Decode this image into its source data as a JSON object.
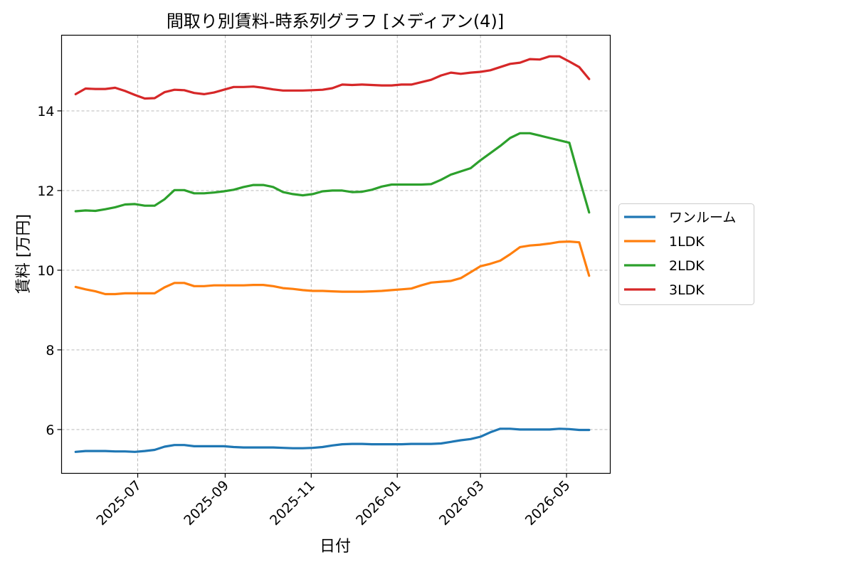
{
  "chart_data": {
    "type": "line",
    "title": "間取り別賃料-時系列グラフ [メディアン(4)]",
    "xlabel": "日付",
    "ylabel": "賃料 [万円]",
    "ylim": [
      4.9,
      15.9
    ],
    "yticks": [
      6,
      8,
      10,
      12,
      14
    ],
    "xlim": [
      "2025-05-08",
      "2026-06-01"
    ],
    "xticks": [
      "2025-07-01",
      "2025-09-01",
      "2025-11-01",
      "2026-01-01",
      "2026-03-01",
      "2026-05-01"
    ],
    "xtick_labels": [
      "2025-07",
      "2025-09",
      "2025-11",
      "2026-01",
      "2026-03",
      "2026-05"
    ],
    "grid": true,
    "legend_position": "center-right-outside",
    "x": [
      "2025-05-18",
      "2025-05-25",
      "2025-06-01",
      "2025-06-08",
      "2025-06-15",
      "2025-06-22",
      "2025-06-29",
      "2025-07-06",
      "2025-07-13",
      "2025-07-20",
      "2025-07-27",
      "2025-08-03",
      "2025-08-10",
      "2025-08-17",
      "2025-08-24",
      "2025-08-31",
      "2025-09-07",
      "2025-09-14",
      "2025-09-21",
      "2025-09-28",
      "2025-10-05",
      "2025-10-12",
      "2025-10-19",
      "2025-10-26",
      "2025-11-02",
      "2025-11-09",
      "2025-11-16",
      "2025-11-23",
      "2025-11-30",
      "2025-12-07",
      "2025-12-14",
      "2025-12-21",
      "2025-12-28",
      "2026-01-04",
      "2026-01-11",
      "2026-01-18",
      "2026-01-25",
      "2026-02-01",
      "2026-02-08",
      "2026-02-15",
      "2026-02-22",
      "2026-03-01",
      "2026-03-08",
      "2026-03-15",
      "2026-03-22",
      "2026-03-29",
      "2026-04-05",
      "2026-04-12",
      "2026-04-19",
      "2026-04-26",
      "2026-05-03",
      "2026-05-10",
      "2026-05-17"
    ],
    "series": [
      {
        "name": "ワンルーム",
        "color": "#1f77b4",
        "values": [
          5.44,
          5.46,
          5.46,
          5.46,
          5.45,
          5.45,
          5.44,
          5.46,
          5.49,
          5.57,
          5.61,
          5.61,
          5.58,
          5.58,
          5.58,
          5.58,
          5.56,
          5.55,
          5.55,
          5.55,
          5.55,
          5.54,
          5.53,
          5.53,
          5.54,
          5.56,
          5.6,
          5.63,
          5.64,
          5.64,
          5.63,
          5.63,
          5.63,
          5.63,
          5.64,
          5.64,
          5.64,
          5.65,
          5.69,
          5.73,
          5.76,
          5.82,
          5.93,
          6.02,
          6.02,
          6.0,
          6.0,
          6.0,
          6.0,
          6.02,
          6.01,
          5.99,
          5.99
        ]
      },
      {
        "name": "1LDK",
        "color": "#ff7f0e",
        "values": [
          9.58,
          9.52,
          9.47,
          9.4,
          9.4,
          9.42,
          9.42,
          9.42,
          9.42,
          9.57,
          9.68,
          9.68,
          9.6,
          9.6,
          9.62,
          9.62,
          9.62,
          9.62,
          9.63,
          9.63,
          9.6,
          9.55,
          9.53,
          9.5,
          9.48,
          9.48,
          9.47,
          9.46,
          9.46,
          9.46,
          9.47,
          9.48,
          9.5,
          9.52,
          9.54,
          9.62,
          9.69,
          9.71,
          9.73,
          9.8,
          9.95,
          10.1,
          10.16,
          10.24,
          10.4,
          10.58,
          10.62,
          10.64,
          10.67,
          10.71,
          10.72,
          10.7,
          9.86
        ]
      },
      {
        "name": "2LDK",
        "color": "#2ca02c",
        "values": [
          11.48,
          11.5,
          11.49,
          11.53,
          11.58,
          11.65,
          11.66,
          11.62,
          11.62,
          11.78,
          12.01,
          12.01,
          11.93,
          11.93,
          11.95,
          11.98,
          12.02,
          12.09,
          12.14,
          12.14,
          12.09,
          11.96,
          11.91,
          11.88,
          11.91,
          11.98,
          12.0,
          12.0,
          11.96,
          11.97,
          12.02,
          12.1,
          12.15,
          12.15,
          12.15,
          12.15,
          12.16,
          12.27,
          12.4,
          12.48,
          12.56,
          12.76,
          12.94,
          13.12,
          13.32,
          13.44,
          13.44,
          13.38,
          13.32,
          13.26,
          13.2,
          12.31,
          11.45
        ]
      },
      {
        "name": "3LDK",
        "color": "#d62728",
        "values": [
          14.42,
          14.56,
          14.55,
          14.55,
          14.58,
          14.5,
          14.4,
          14.31,
          14.32,
          14.47,
          14.53,
          14.52,
          14.45,
          14.42,
          14.46,
          14.53,
          14.6,
          14.6,
          14.61,
          14.58,
          14.54,
          14.51,
          14.51,
          14.51,
          14.52,
          14.53,
          14.57,
          14.66,
          14.65,
          14.66,
          14.65,
          14.64,
          14.64,
          14.66,
          14.66,
          14.72,
          14.78,
          14.89,
          14.96,
          14.93,
          14.96,
          14.98,
          15.02,
          15.1,
          15.18,
          15.21,
          15.3,
          15.29,
          15.37,
          15.37,
          15.24,
          15.1,
          14.8
        ]
      }
    ]
  }
}
